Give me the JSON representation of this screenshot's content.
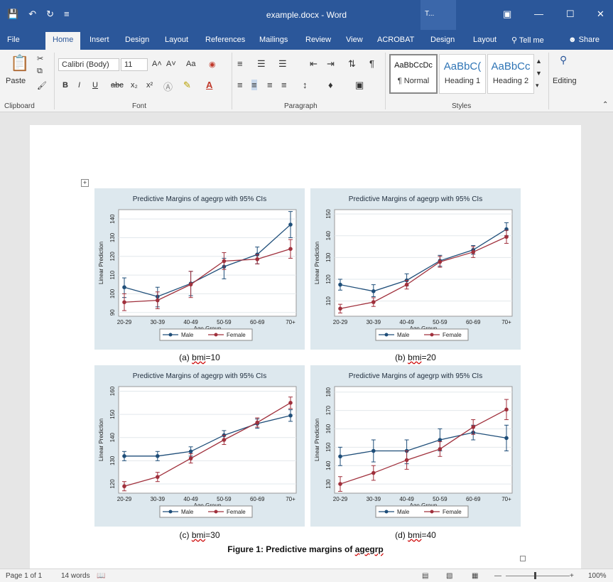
{
  "window": {
    "title": "example.docx - Word",
    "context_label": "T...",
    "minimize": "—",
    "maximize": "☐",
    "close": "✕"
  },
  "qat": {
    "save_icon": "save-icon",
    "undo_icon": "undo-icon",
    "redo_icon": "redo-icon",
    "customize_icon": "customize-qat-icon"
  },
  "tabs": [
    "File",
    "Home",
    "Insert",
    "Design",
    "Layout",
    "References",
    "Mailings",
    "Review",
    "View",
    "ACROBAT",
    "Design",
    "Layout"
  ],
  "tell_me": "Tell me",
  "share": "Share",
  "ribbon": {
    "clipboard": {
      "paste": "Paste",
      "label": "Clipboard"
    },
    "font": {
      "name": "Calibri (Body)",
      "size": "11",
      "label": "Font",
      "grow": "A˄",
      "shrink": "A˅",
      "change_case": "Aa",
      "bold": "B",
      "italic": "I",
      "underline": "U",
      "strike": "abc",
      "sub": "x₂",
      "sup": "x²"
    },
    "paragraph": {
      "label": "Paragraph"
    },
    "styles": {
      "label": "Styles",
      "items": [
        {
          "sample": "AaBbCcDc",
          "name": "¶ Normal"
        },
        {
          "sample": "AaBbC(",
          "name": "Heading 1"
        },
        {
          "sample": "AaBbCc",
          "name": "Heading 2"
        }
      ]
    },
    "editing": {
      "label": "Editing"
    }
  },
  "figure": {
    "caption": "Figure 1: Predictive margins of ",
    "caption_word": "agegrp",
    "subcaptions": [
      {
        "prefix": "(a) ",
        "word": "bmi",
        "suffix": "=10"
      },
      {
        "prefix": "(b) ",
        "word": "bmi",
        "suffix": "=20"
      },
      {
        "prefix": "(c) ",
        "word": "bmi",
        "suffix": "=30"
      },
      {
        "prefix": "(d) ",
        "word": "bmi",
        "suffix": "=40"
      }
    ]
  },
  "chart_data": [
    {
      "type": "line",
      "title": "Predictive Margins of agegrp with 95% CIs",
      "xlabel": "Age Group",
      "ylabel": "Linear Prediction",
      "categories": [
        "20-29",
        "30-39",
        "40-49",
        "50-59",
        "60-69",
        "70+"
      ],
      "ylim": [
        88,
        145
      ],
      "yticks": [
        90,
        100,
        110,
        120,
        130,
        140
      ],
      "series": [
        {
          "name": "Male",
          "color": "#1f4e79",
          "values": [
            103.5,
            98.5,
            105.5,
            114.5,
            121,
            137
          ],
          "ci_low": [
            98,
            93,
            99,
            108,
            116,
            130
          ],
          "ci_high": [
            108.5,
            103.5,
            112,
            119,
            125,
            144
          ]
        },
        {
          "name": "Female",
          "color": "#a0303c",
          "values": [
            95.5,
            96.5,
            105,
            117.5,
            118.5,
            124
          ],
          "ci_low": [
            91,
            92,
            98,
            113,
            116,
            119
          ],
          "ci_high": [
            100,
            101,
            112,
            122,
            121,
            129
          ]
        }
      ]
    },
    {
      "type": "line",
      "title": "Predictive Margins of agegrp with 95% CIs",
      "xlabel": "Age Group",
      "ylabel": "Linear Prediction",
      "categories": [
        "20-29",
        "30-39",
        "40-49",
        "50-59",
        "60-69",
        "70+"
      ],
      "ylim": [
        103,
        152
      ],
      "yticks": [
        110,
        120,
        130,
        140,
        150
      ],
      "series": [
        {
          "name": "Male",
          "color": "#1f4e79",
          "values": [
            117.5,
            114.5,
            119.5,
            128.5,
            133.5,
            143
          ],
          "ci_low": [
            115,
            112,
            117,
            126,
            131.5,
            140
          ],
          "ci_high": [
            120,
            117.5,
            122.5,
            131,
            135.5,
            146
          ]
        },
        {
          "name": "Female",
          "color": "#a0303c",
          "values": [
            106.5,
            109.5,
            117.5,
            128,
            132.5,
            139.5
          ],
          "ci_low": [
            104.5,
            107.5,
            115.5,
            125.5,
            130,
            136.5
          ],
          "ci_high": [
            108.5,
            111.5,
            119.5,
            130.5,
            135,
            142.5
          ]
        }
      ]
    },
    {
      "type": "line",
      "title": "Predictive Margins of agegrp with 95% CIs",
      "xlabel": "Age Group",
      "ylabel": "Linear Prediction",
      "categories": [
        "20-29",
        "30-39",
        "40-49",
        "50-59",
        "60-69",
        "70+"
      ],
      "ylim": [
        116,
        162
      ],
      "yticks": [
        120,
        130,
        140,
        150,
        160
      ],
      "series": [
        {
          "name": "Male",
          "color": "#1f4e79",
          "values": [
            132,
            132,
            134,
            141,
            146,
            149.5
          ],
          "ci_low": [
            130,
            130,
            132,
            139,
            144,
            147
          ],
          "ci_high": [
            134,
            134,
            136,
            143,
            148,
            152
          ]
        },
        {
          "name": "Female",
          "color": "#a0303c",
          "values": [
            119,
            123,
            131,
            139,
            146.5,
            155
          ],
          "ci_low": [
            117,
            121,
            129,
            137,
            144.5,
            152.5
          ],
          "ci_high": [
            121,
            125,
            133,
            141,
            148.5,
            157.5
          ]
        }
      ]
    },
    {
      "type": "line",
      "title": "Predictive Margins of agegrp with 95% CIs",
      "xlabel": "Age Group",
      "ylabel": "Linear Prediction",
      "categories": [
        "20-29",
        "30-39",
        "40-49",
        "50-59",
        "60-69",
        "70+"
      ],
      "ylim": [
        125,
        183
      ],
      "yticks": [
        130,
        140,
        150,
        160,
        170,
        180
      ],
      "series": [
        {
          "name": "Male",
          "color": "#1f4e79",
          "values": [
            145,
            148,
            148,
            154,
            158,
            155
          ],
          "ci_low": [
            140,
            142,
            141,
            148,
            154,
            148
          ],
          "ci_high": [
            150,
            154,
            154,
            160,
            162,
            162
          ]
        },
        {
          "name": "Female",
          "color": "#a0303c",
          "values": [
            130,
            136,
            143,
            149,
            161,
            170.5
          ],
          "ci_low": [
            126,
            132,
            138,
            145,
            157,
            165
          ],
          "ci_high": [
            134,
            140,
            148,
            153,
            165,
            176
          ]
        }
      ]
    }
  ],
  "status": {
    "page": "Page 1 of 1",
    "words": "14 words",
    "zoom": "100%"
  }
}
